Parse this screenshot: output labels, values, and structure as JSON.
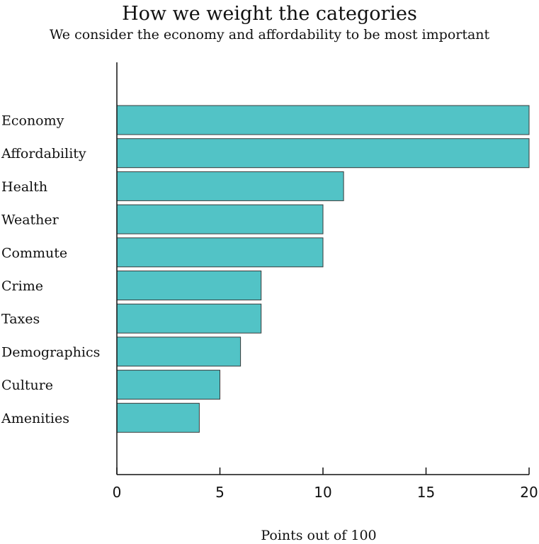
{
  "chart_data": {
    "type": "bar",
    "orientation": "horizontal",
    "title": "How we weight the categories",
    "subtitle": "We consider the economy and affordability to be most important",
    "xlabel": "Points out of 100",
    "ylabel": "",
    "categories": [
      "Economy",
      "Affordability",
      "Health",
      "Weather",
      "Commute",
      "Crime",
      "Taxes",
      "Demographics",
      "Culture",
      "Amenities"
    ],
    "values": [
      20,
      20,
      11,
      10,
      10,
      7,
      7,
      6,
      5,
      4
    ],
    "xlim": [
      0,
      20
    ],
    "xticks": [
      0,
      5,
      10,
      15,
      20
    ],
    "grid": false,
    "legend": "none",
    "colors": {
      "bar_fill": "#52c3c6",
      "bar_stroke": "#3a3a3a",
      "axis": "#111111"
    }
  }
}
